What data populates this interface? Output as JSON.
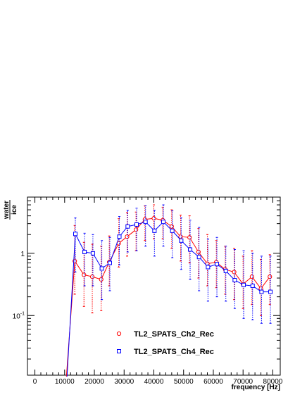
{
  "chart_data": {
    "type": "line",
    "title": "",
    "xlabel": "frequency [Hz]",
    "ylabel_numerator": "water",
    "ylabel_denominator": "ice",
    "x_scale": "linear",
    "y_scale": "log",
    "xlim": [
      -2500,
      82500
    ],
    "ylim": [
      0.011,
      8
    ],
    "x_ticks": [
      0,
      10000,
      20000,
      30000,
      40000,
      50000,
      60000,
      70000,
      80000
    ],
    "x_tick_labels": [
      "0",
      "10000",
      "20000",
      "30000",
      "40000",
      "50000",
      "60000",
      "70000",
      "80000"
    ],
    "y_ticks": [
      0.1,
      1
    ],
    "y_tick_labels": [
      {
        "base": "10",
        "exp": "-1"
      },
      {
        "base": "1",
        "exp": ""
      }
    ],
    "grid": false,
    "legend_position": "bottom-center",
    "series": [
      {
        "name": "TL2_SPATS_Ch2_Rec",
        "color": "#ff0000",
        "marker": "circle",
        "x": [
          10600,
          13400,
          16500,
          19300,
          22300,
          25000,
          28200,
          31000,
          34000,
          37000,
          40000,
          43000,
          46000,
          49000,
          52000,
          55000,
          58000,
          61000,
          64000,
          67000,
          70000,
          73000,
          76000,
          79000
        ],
        "y": [
          0.011,
          0.75,
          0.45,
          0.42,
          0.38,
          0.72,
          1.45,
          1.85,
          2.4,
          3.5,
          3.65,
          3.4,
          2.7,
          1.85,
          1.8,
          1.05,
          0.68,
          0.72,
          0.55,
          0.5,
          0.32,
          0.42,
          0.27,
          0.42
        ],
        "y_low": [
          null,
          0.22,
          0.14,
          0.11,
          0.12,
          0.3,
          0.6,
          0.9,
          1.1,
          1.6,
          1.7,
          1.7,
          1.2,
          0.75,
          0.7,
          0.4,
          0.3,
          0.28,
          0.22,
          0.18,
          0.13,
          0.15,
          0.1,
          0.15
        ],
        "y_high": [
          null,
          2.8,
          1.5,
          1.4,
          1.3,
          1.9,
          3.6,
          4.5,
          4.6,
          5.8,
          6.0,
          5.5,
          5.0,
          4.1,
          4.0,
          2.5,
          2.0,
          1.6,
          1.3,
          1.2,
          0.9,
          1.1,
          0.8,
          0.95
        ]
      },
      {
        "name": "TL2_SPATS_Ch4_Rec",
        "color": "#0000ff",
        "marker": "square",
        "x": [
          10800,
          13600,
          16700,
          19500,
          22500,
          25200,
          28400,
          31200,
          34200,
          37200,
          40200,
          43200,
          46200,
          49200,
          52200,
          55200,
          58200,
          61200,
          64200,
          67200,
          70200,
          73200,
          76200,
          79200
        ],
        "y": [
          0.011,
          2.05,
          1.05,
          1.0,
          0.57,
          0.7,
          1.85,
          2.7,
          2.9,
          3.2,
          2.3,
          3.2,
          2.3,
          1.6,
          1.15,
          0.87,
          0.6,
          0.67,
          0.52,
          0.37,
          0.31,
          0.3,
          0.24,
          0.24
        ],
        "y_low": [
          null,
          0.5,
          0.3,
          0.3,
          0.18,
          0.25,
          0.65,
          1.05,
          1.1,
          1.3,
          0.9,
          1.3,
          0.85,
          0.55,
          0.38,
          0.25,
          0.17,
          0.2,
          0.17,
          0.13,
          0.09,
          0.085,
          0.075,
          0.075
        ],
        "y_high": [
          null,
          3.7,
          2.1,
          2.0,
          1.6,
          1.8,
          3.9,
          4.9,
          5.3,
          5.8,
          4.9,
          6.0,
          4.8,
          3.7,
          3.4,
          2.6,
          1.7,
          1.8,
          1.3,
          1.15,
          1.1,
          1.0,
          0.9,
          0.9
        ]
      }
    ]
  }
}
